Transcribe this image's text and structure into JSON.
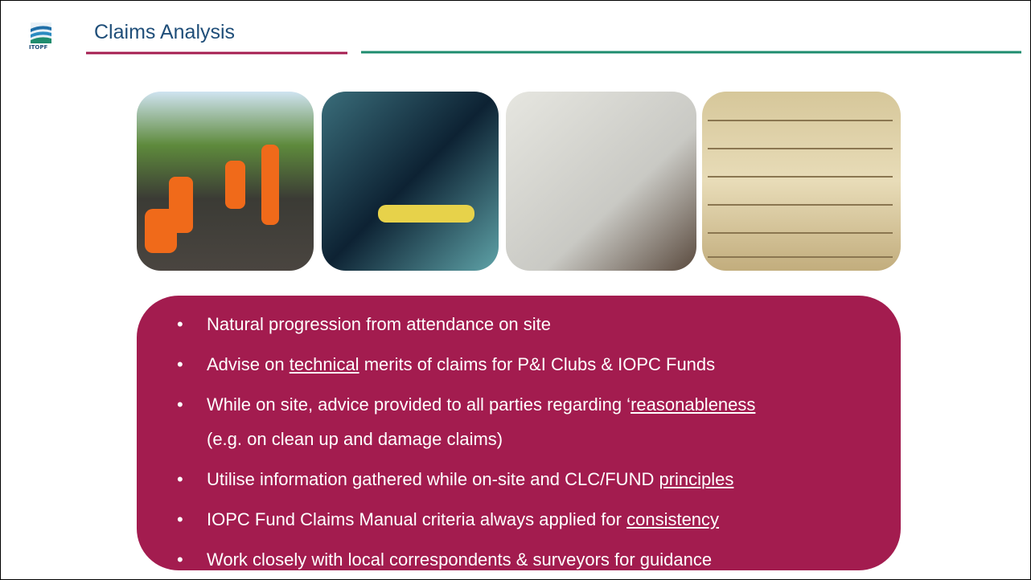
{
  "header": {
    "logo": "ITOPF",
    "title": "Claims Analysis"
  },
  "bullets": [
    {
      "parts": [
        {
          "text": "Natural progression from attendance on site"
        }
      ]
    },
    {
      "parts": [
        {
          "text": "Advise on "
        },
        {
          "text": "technical",
          "underline": true
        },
        {
          "text": " merits of claims for P&I Clubs & IOPC Funds"
        }
      ]
    },
    {
      "parts": [
        {
          "text": "While on site, advice provided to all parties regarding ‘"
        },
        {
          "text": "reasonableness",
          "underline": true
        },
        {
          "text": "(e.g. on clean up and damage claims)",
          "break_before": true
        }
      ]
    },
    {
      "parts": [
        {
          "text": "Utilise information gathered while on-site and CLC/FUND "
        },
        {
          "text": "principles",
          "underline": true
        }
      ]
    },
    {
      "parts": [
        {
          "text": "IOPC Fund Claims Manual criteria always applied for "
        },
        {
          "text": "consistency",
          "underline": true
        }
      ]
    },
    {
      "parts": [
        {
          "text": "Work closely with local correspondents & surveyors for guidance"
        }
      ]
    }
  ]
}
